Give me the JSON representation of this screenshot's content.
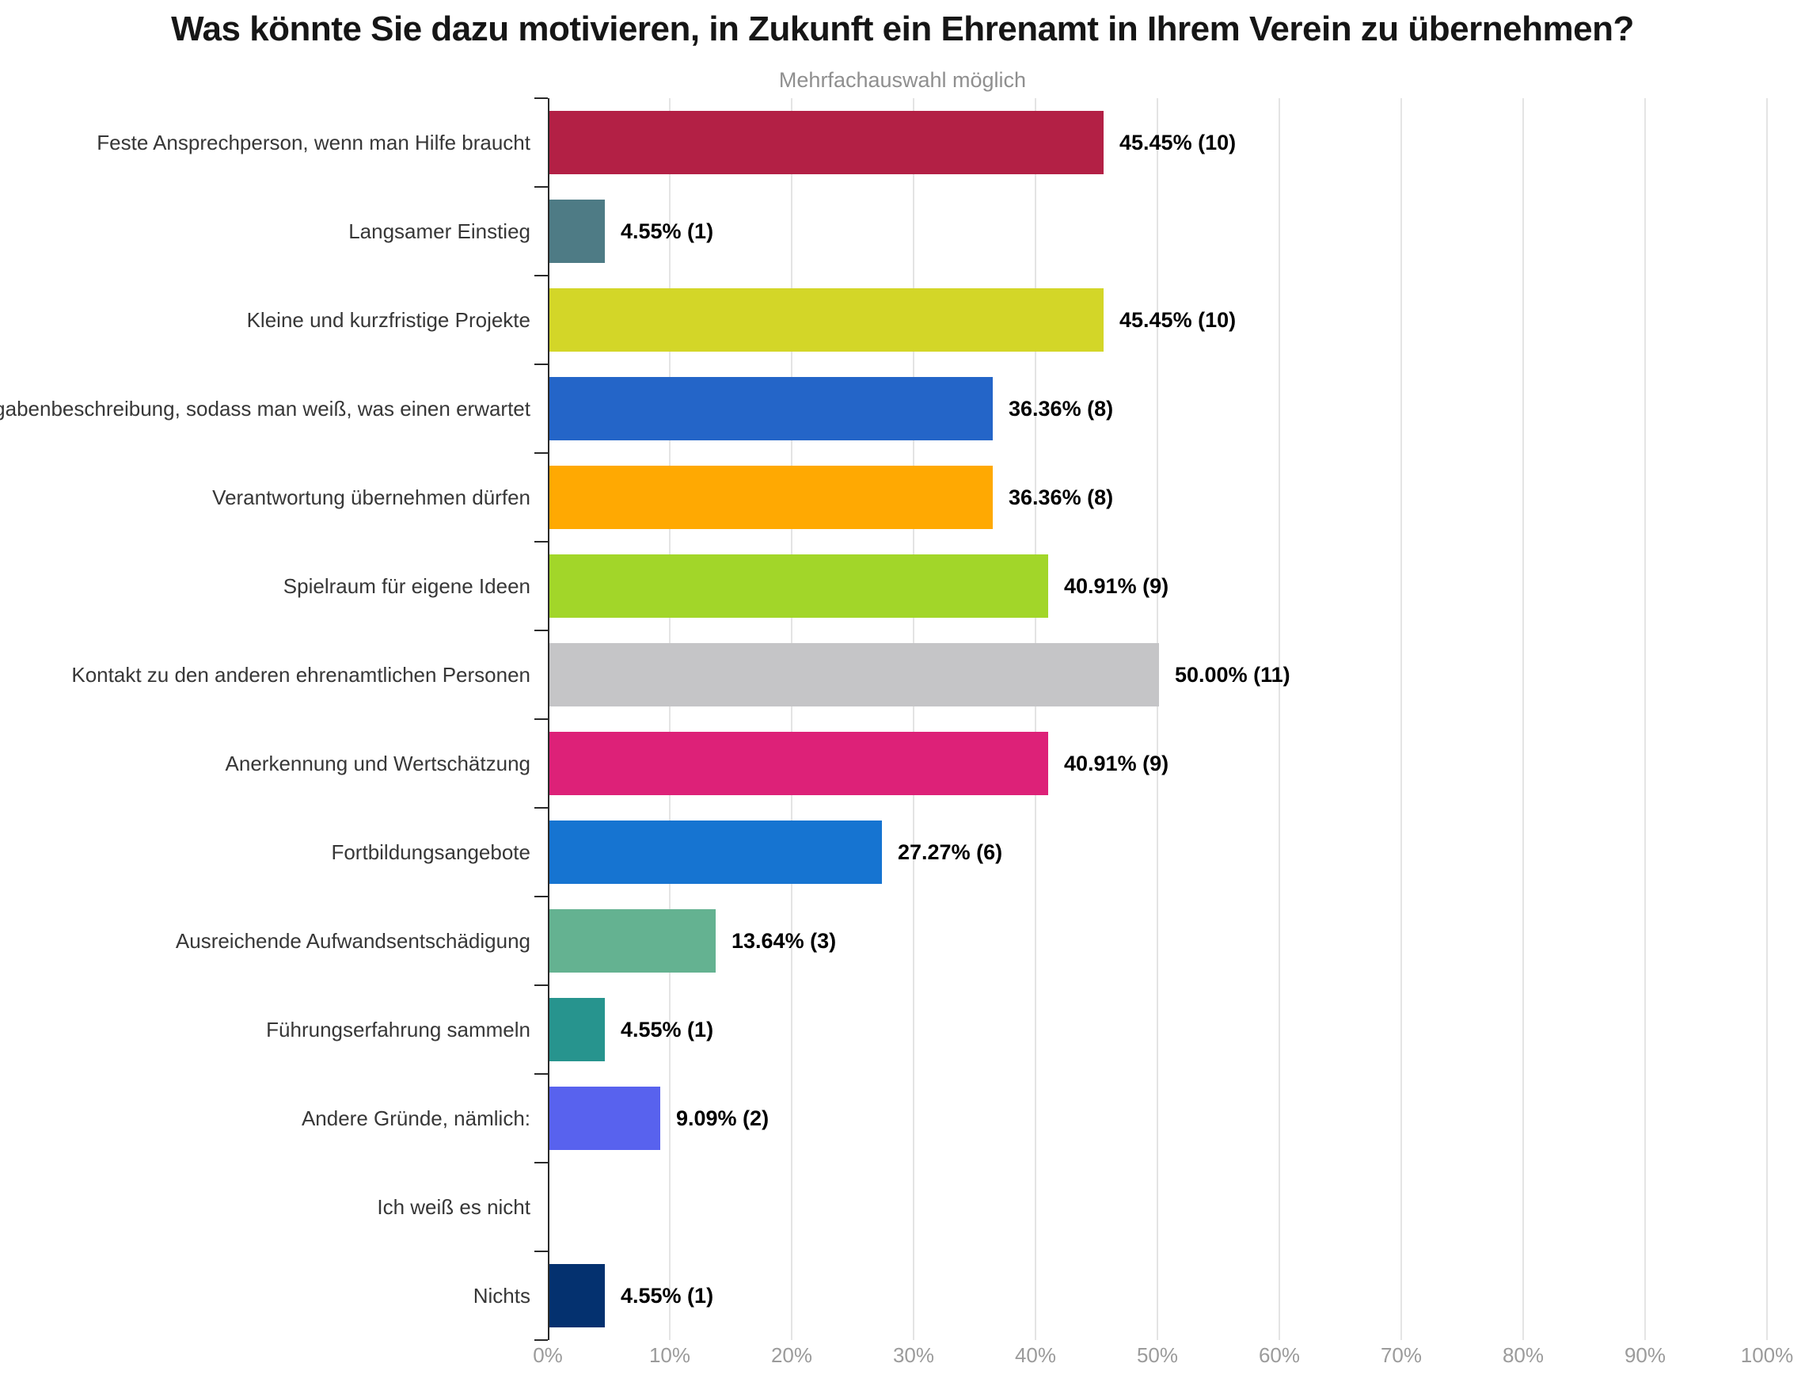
{
  "page": {
    "background": "#ffffff"
  },
  "chart_data": {
    "type": "bar",
    "orientation": "horizontal",
    "title": "Was könnte Sie dazu motivieren, in Zukunft ein Ehrenamt in Ihrem Verein zu übernehmen?",
    "subtitle": "Mehrfachauswahl möglich",
    "xlabel": "",
    "ylabel": "",
    "xlim": [
      0,
      100
    ],
    "grid": true,
    "legend_position": "none",
    "x_tick_labels": [
      "0%",
      "10%",
      "20%",
      "30%",
      "40%",
      "50%",
      "60%",
      "70%",
      "80%",
      "90%",
      "100%"
    ],
    "categories": [
      "Feste Ansprechperson, wenn man Hilfe braucht",
      "Langsamer Einstieg",
      "Kleine und kurzfristige Projekte",
      "Klare Aufgabenbeschreibung, sodass man weiß, was einen erwartet",
      "Verantwortung übernehmen dürfen",
      "Spielraum für eigene Ideen",
      "Kontakt zu den anderen ehrenamtlichen Personen",
      "Anerkennung und Wertschätzung",
      "Fortbildungsangebote",
      "Ausreichende Aufwandsentschädigung",
      "Führungserfahrung sammeln",
      "Andere Gründe, nämlich:",
      "Ich weiß es nicht",
      "Nichts"
    ],
    "values": [
      45.45,
      4.55,
      45.45,
      36.36,
      36.36,
      40.91,
      50.0,
      40.91,
      27.27,
      13.64,
      4.55,
      9.09,
      0,
      4.55
    ],
    "counts": [
      10,
      1,
      10,
      8,
      8,
      9,
      11,
      9,
      6,
      3,
      1,
      2,
      0,
      1
    ],
    "value_labels": [
      "45.45% (10)",
      "4.55% (1)",
      "45.45% (10)",
      "36.36% (8)",
      "36.36% (8)",
      "40.91% (9)",
      "50.00% (11)",
      "40.91% (9)",
      "27.27% (6)",
      "13.64% (3)",
      "4.55% (1)",
      "9.09% (2)",
      "",
      "4.55% (1)"
    ],
    "bar_colors": [
      "#B32045",
      "#4E7B85",
      "#D3D628",
      "#2465C8",
      "#FFA902",
      "#A2D629",
      "#C5C5C7",
      "#DD2178",
      "#1674D1",
      "#64B291",
      "#27948E",
      "#5862EE",
      "",
      "#04316F"
    ],
    "axis_color": "#2A2A2A",
    "grid_color": "#E4E4E4",
    "tick_label_color": "#9B9B9B",
    "category_label_color": "#373737",
    "value_label_color": "#000000"
  }
}
